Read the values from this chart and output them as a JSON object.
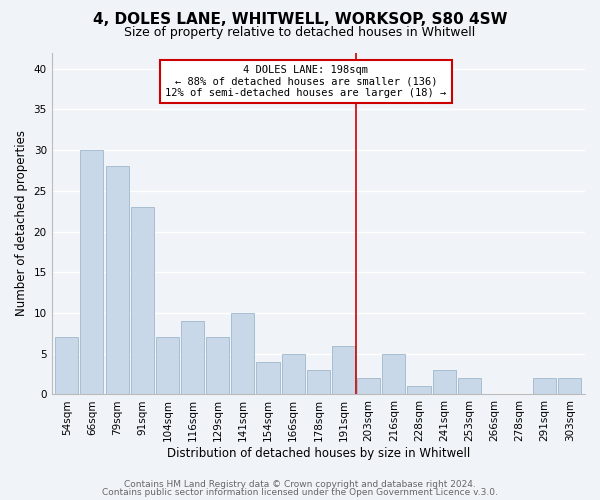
{
  "title": "4, DOLES LANE, WHITWELL, WORKSOP, S80 4SW",
  "subtitle": "Size of property relative to detached houses in Whitwell",
  "xlabel": "Distribution of detached houses by size in Whitwell",
  "ylabel": "Number of detached properties",
  "bar_labels": [
    "54sqm",
    "66sqm",
    "79sqm",
    "91sqm",
    "104sqm",
    "116sqm",
    "129sqm",
    "141sqm",
    "154sqm",
    "166sqm",
    "178sqm",
    "191sqm",
    "203sqm",
    "216sqm",
    "228sqm",
    "241sqm",
    "253sqm",
    "266sqm",
    "278sqm",
    "291sqm",
    "303sqm"
  ],
  "bar_heights": [
    7,
    30,
    28,
    23,
    7,
    9,
    7,
    10,
    4,
    5,
    3,
    6,
    2,
    5,
    1,
    3,
    2,
    0,
    0,
    2,
    2
  ],
  "bar_color": "#c8d8e8",
  "bar_edge_color": "#a0b8cc",
  "vline_x": 11.5,
  "vline_color": "#cc0000",
  "annotation_title": "4 DOLES LANE: 198sqm",
  "annotation_line1": "← 88% of detached houses are smaller (136)",
  "annotation_line2": "12% of semi-detached houses are larger (18) →",
  "annotation_box_color": "#ffffff",
  "annotation_box_edge": "#cc0000",
  "ylim": [
    0,
    42
  ],
  "yticks": [
    0,
    5,
    10,
    15,
    20,
    25,
    30,
    35,
    40
  ],
  "footer1": "Contains HM Land Registry data © Crown copyright and database right 2024.",
  "footer2": "Contains public sector information licensed under the Open Government Licence v.3.0.",
  "background_color": "#f0f4f8",
  "grid_color": "#ffffff",
  "title_fontsize": 11,
  "subtitle_fontsize": 9,
  "tick_fontsize": 7.5,
  "footer_fontsize": 6.5,
  "axis_label_fontsize": 8.5
}
